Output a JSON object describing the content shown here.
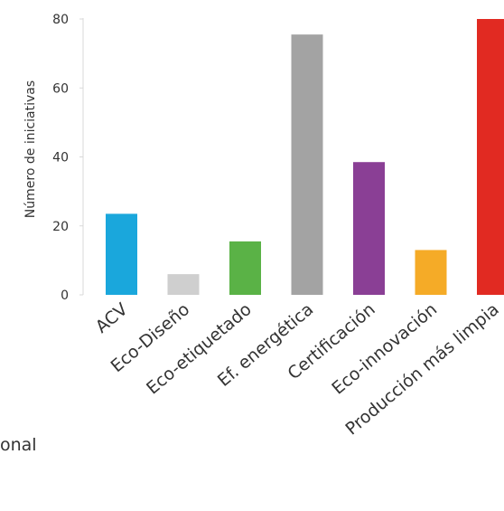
{
  "chart_data": {
    "type": "bar",
    "categories": [
      "ACV",
      "Eco-Diseño",
      "Eco-etiquetado",
      "Ef. energética",
      "Certificación",
      "Eco-innovación",
      "Producción más limpia"
    ],
    "values": [
      23.5,
      6,
      15.5,
      75.5,
      38.5,
      13,
      80
    ],
    "colors": [
      "#1aa7dc",
      "#cfcfcf",
      "#5ab246",
      "#a3a3a3",
      "#8a3f95",
      "#f5ab27",
      "#e12a22"
    ],
    "ylabel": "Número de iniciativas",
    "ylim": [
      0,
      80
    ],
    "yticks": [
      0,
      20,
      40,
      60,
      80
    ],
    "grid": false
  },
  "fragment_text": "onal"
}
